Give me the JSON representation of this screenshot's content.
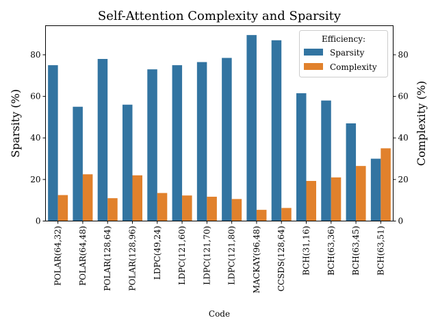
{
  "chart_data": {
    "type": "bar",
    "title": "Self-Attention Complexity and Sparsity",
    "xlabel": "Code",
    "ylabel": "Sparsity (%)",
    "y2label": "Complexity (%)",
    "ylim": [
      0,
      94
    ],
    "yticks": [
      0,
      20,
      40,
      60,
      80
    ],
    "ytick_labels": [
      "0",
      "20",
      "40",
      "60",
      "80"
    ],
    "categories": [
      "POLAR(64,32)",
      "POLAR(64,48)",
      "POLAR(128,64)",
      "POLAR(128,96)",
      "LDPC(49,24)",
      "LDPC(121,60)",
      "LDPC(121,70)",
      "LDPC(121,80)",
      "MACKAY(96,48)",
      "CCSDS(128,64)",
      "BCH(31,16)",
      "BCH(63,36)",
      "BCH(63,45)",
      "BCH(63,51)"
    ],
    "series": [
      {
        "name": "Sparsity",
        "color": "#3274a1",
        "values": [
          75,
          55,
          78,
          56,
          73,
          75,
          76.5,
          78.5,
          89.5,
          87,
          61.5,
          58,
          47,
          30
        ]
      },
      {
        "name": "Complexity",
        "color": "#e1812c",
        "values": [
          12.5,
          22.5,
          11,
          22,
          13.5,
          12.3,
          11.7,
          10.6,
          5.4,
          6.3,
          19.3,
          21,
          26.5,
          35
        ]
      }
    ],
    "legend": {
      "title": "Efficiency:",
      "location": "top-right"
    }
  }
}
